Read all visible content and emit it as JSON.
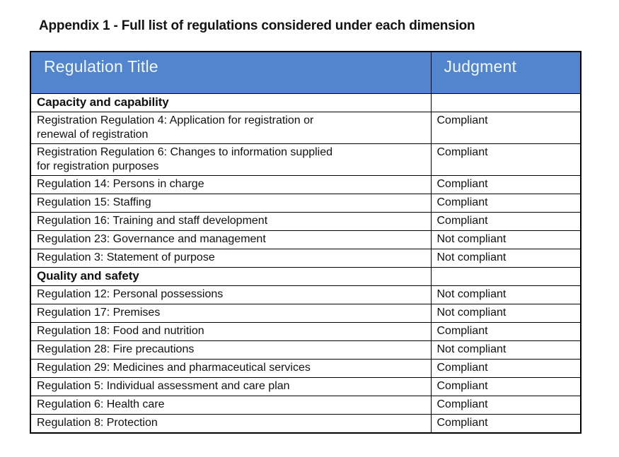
{
  "page": {
    "title": "Appendix 1 - Full list of regulations considered under each dimension"
  },
  "colors": {
    "header_background": "#5285cd",
    "header_text": "#f2f7fd",
    "table_border": "#000000",
    "body_text": "#111111"
  },
  "table": {
    "headers": {
      "regulation_title": "Regulation Title",
      "judgment": "Judgment"
    },
    "rows": [
      {
        "type": "section",
        "title": "Capacity and capability",
        "judgment": ""
      },
      {
        "type": "item",
        "title": "Registration Regulation 4: Application for registration or\nrenewal of registration",
        "judgment": "Compliant"
      },
      {
        "type": "item",
        "title": "Registration Regulation 6: Changes to information supplied\nfor registration purposes",
        "judgment": "Compliant"
      },
      {
        "type": "item",
        "title": "Regulation 14: Persons in charge",
        "judgment": "Compliant"
      },
      {
        "type": "item",
        "title": "Regulation 15: Staffing",
        "judgment": "Compliant"
      },
      {
        "type": "item",
        "title": "Regulation 16: Training and staff development",
        "judgment": "Compliant"
      },
      {
        "type": "item",
        "title": "Regulation 23: Governance and management",
        "judgment": "Not compliant"
      },
      {
        "type": "item",
        "title": "Regulation 3: Statement of purpose",
        "judgment": "Not compliant"
      },
      {
        "type": "section",
        "title": "Quality and safety",
        "judgment": ""
      },
      {
        "type": "item",
        "title": "Regulation 12: Personal possessions",
        "judgment": "Not compliant"
      },
      {
        "type": "item",
        "title": "Regulation 17: Premises",
        "judgment": "Not compliant"
      },
      {
        "type": "item",
        "title": "Regulation 18: Food and nutrition",
        "judgment": "Compliant"
      },
      {
        "type": "item",
        "title": "Regulation 28: Fire precautions",
        "judgment": "Not compliant"
      },
      {
        "type": "item",
        "title": "Regulation 29: Medicines and pharmaceutical services",
        "judgment": "Compliant"
      },
      {
        "type": "item",
        "title": "Regulation 5: Individual assessment and care plan",
        "judgment": "Compliant"
      },
      {
        "type": "item",
        "title": "Regulation 6: Health care",
        "judgment": "Compliant"
      },
      {
        "type": "item",
        "title": "Regulation 8: Protection",
        "judgment": "Compliant"
      }
    ]
  }
}
